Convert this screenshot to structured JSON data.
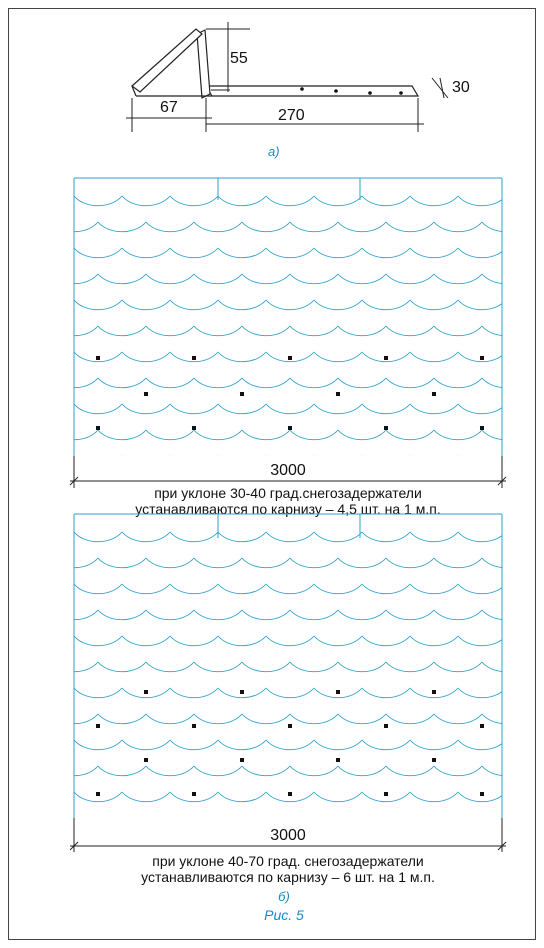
{
  "colors": {
    "roof_line": "#2aa3c9",
    "dimension_line": "#222222",
    "caption_blue": "#1a8ac6",
    "marker": "#111111"
  },
  "bracket": {
    "dim_height": "55",
    "dim_base": "67",
    "dim_length": "270",
    "dim_thickness": "30",
    "label": "а)"
  },
  "panel_1": {
    "width_label": "3000",
    "caption_line1": "при уклоне 30-40 град.снегозадержатели",
    "caption_line2": "устанавливаются по карнизу – 4,5 шт. на 1 м.п."
  },
  "panel_2": {
    "width_label": "3000",
    "caption_line1": "при уклоне 40-70 град. снегозадержатели",
    "caption_line2": "устанавливаются по карнизу – 6 шт. на 1 м.п.",
    "label": "б)"
  },
  "figure_caption": "Рис. 5"
}
